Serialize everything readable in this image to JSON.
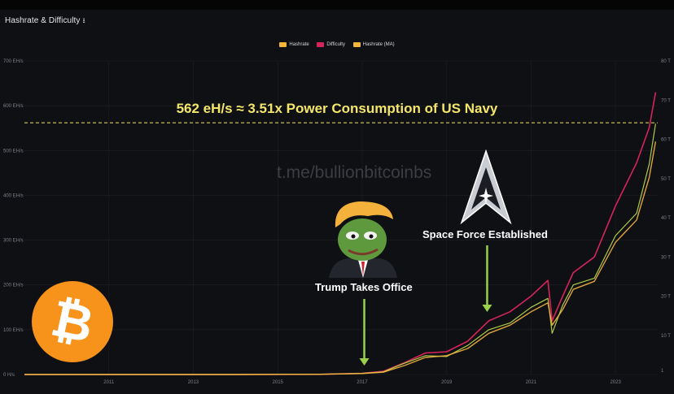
{
  "panel": {
    "title": "Hashrate & Difficulty",
    "title_icon": "download-icon",
    "title_icon_glyph": "⭳"
  },
  "legend": [
    {
      "label": "Hashrate",
      "color": "#f2b537"
    },
    {
      "label": "Difficulty",
      "color": "#d6245a"
    },
    {
      "label": "Hashrate (MA)",
      "color": "#f4b53f"
    }
  ],
  "watermark": "t.me/bullionbitcoinbs",
  "headline": "562 eH/s  ≈  3.51x Power Consumption of US Navy",
  "annotations": {
    "trump": "Trump Takes Office",
    "space_force": "Space Force Established"
  },
  "icons": {
    "bitcoin": "bitcoin-logo-icon",
    "bitcoin_glyph": "₿",
    "pepe": "pepe-trump-meme-icon",
    "space_force": "space-force-delta-icon"
  },
  "colors": {
    "background": "#0f1014",
    "grid": "#1e2026",
    "headline": "#f3e66a",
    "reference_line": "#f3e66a",
    "arrow": "#9bd04a",
    "hashrate": "#b7d64a",
    "difficulty": "#d6245a",
    "hashrate_ma": "#f4b53f"
  },
  "chart_data": {
    "type": "line",
    "title": "Hashrate & Difficulty",
    "x_start": 2009.0,
    "x_ticks": [
      "2011",
      "2013",
      "2015",
      "2017",
      "2019",
      "2021",
      "2023"
    ],
    "x_tick_values": [
      2011,
      2013,
      2015,
      2017,
      2019,
      2021,
      2023
    ],
    "xlim": [
      2009.0,
      2024.0
    ],
    "y_left": {
      "ticks": [
        "0 H/s",
        "100 EH/s",
        "200 EH/s",
        "300 EH/s",
        "400 EH/s",
        "500 EH/s",
        "600 EH/s",
        "700 EH/s"
      ],
      "tick_values": [
        0,
        100,
        200,
        300,
        400,
        500,
        600,
        700
      ],
      "ylim": [
        0,
        700
      ],
      "unit": "EH/s"
    },
    "y_right": {
      "ticks": [
        "1",
        "10 T",
        "20 T",
        "30 T",
        "40 T",
        "50 T",
        "60 T",
        "70 T",
        "80 T"
      ],
      "tick_values": [
        1,
        10,
        20,
        30,
        40,
        50,
        60,
        70,
        80
      ],
      "ylim": [
        0,
        80
      ],
      "unit": "T"
    },
    "reference_line": {
      "y": 562,
      "label": "562 eH/s"
    },
    "events": [
      {
        "label": "Trump Takes Office",
        "x": 2017.05
      },
      {
        "label": "Space Force Established",
        "x": 2019.96
      }
    ],
    "series": [
      {
        "name": "Hashrate",
        "color": "#b7d64a",
        "x": [
          2009.0,
          2012.0,
          2014.0,
          2016.0,
          2017.0,
          2017.5,
          2018.0,
          2018.5,
          2019.0,
          2019.5,
          2020.0,
          2020.5,
          2021.0,
          2021.4,
          2021.5,
          2021.75,
          2022.0,
          2022.5,
          2023.0,
          2023.5,
          2023.8,
          2023.95
        ],
        "values": [
          0,
          0,
          0,
          0.6,
          2.5,
          6,
          25,
          42,
          40,
          65,
          100,
          115,
          150,
          170,
          92,
          155,
          200,
          215,
          310,
          360,
          470,
          560
        ]
      },
      {
        "name": "Difficulty",
        "color": "#d6245a",
        "x": [
          2009.0,
          2012.0,
          2014.0,
          2016.0,
          2017.0,
          2017.5,
          2018.0,
          2018.5,
          2019.0,
          2019.5,
          2020.0,
          2020.5,
          2021.0,
          2021.4,
          2021.5,
          2021.75,
          2022.0,
          2022.5,
          2023.0,
          2023.5,
          2023.8,
          2023.95
        ],
        "values": [
          0,
          0,
          0,
          0.05,
          0.3,
          0.8,
          3,
          5.5,
          5.8,
          8.5,
          13.7,
          16,
          20,
          24,
          13.7,
          20,
          26,
          30,
          43,
          54,
          63,
          72
        ]
      },
      {
        "name": "Hashrate (MA)",
        "color": "#f4b53f",
        "x": [
          2009.0,
          2012.0,
          2014.0,
          2016.0,
          2017.0,
          2017.5,
          2018.0,
          2018.5,
          2019.0,
          2019.5,
          2020.0,
          2020.5,
          2021.0,
          2021.4,
          2021.5,
          2021.75,
          2022.0,
          2022.5,
          2023.0,
          2023.5,
          2023.8,
          2023.95
        ],
        "values": [
          0,
          0,
          0,
          0.5,
          2.2,
          5,
          20,
          38,
          42,
          58,
          92,
          110,
          140,
          160,
          110,
          145,
          190,
          208,
          295,
          345,
          440,
          520
        ]
      }
    ]
  }
}
